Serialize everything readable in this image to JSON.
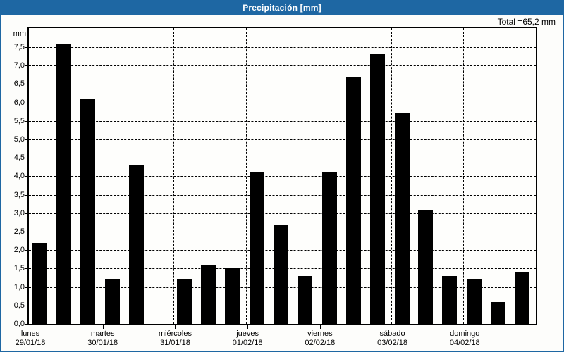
{
  "header": {
    "title": "Precipitación [mm]",
    "total_label": "Total =65,2 mm"
  },
  "chart_data": {
    "type": "bar",
    "title": "Precipitación [mm]",
    "xlabel": "",
    "ylabel": "mm",
    "ylim": [
      0,
      8
    ],
    "ytick_step": 0.5,
    "ytick_labels": [
      "0,0",
      "0,5",
      "1,0",
      "1,5",
      "2,0",
      "2,5",
      "3,0",
      "3,5",
      "4,0",
      "4,5",
      "5,0",
      "5,5",
      "6,0",
      "6,5",
      "7,0",
      "7,5"
    ],
    "grid": "dashed",
    "legend": "none",
    "bar_color": "#000000",
    "bars_per_day": 3,
    "days": [
      {
        "name": "lunes",
        "date": "29/01/18",
        "values": [
          2.2,
          7.6,
          6.1
        ]
      },
      {
        "name": "martes",
        "date": "30/01/18",
        "values": [
          1.2,
          4.3,
          0
        ]
      },
      {
        "name": "miércoles",
        "date": "31/01/18",
        "values": [
          1.2,
          1.6,
          1.5
        ]
      },
      {
        "name": "jueves",
        "date": "01/02/18",
        "values": [
          4.1,
          2.7,
          1.3
        ]
      },
      {
        "name": "viernes",
        "date": "02/02/18",
        "values": [
          4.1,
          6.7,
          7.3
        ]
      },
      {
        "name": "sábado",
        "date": "03/02/18",
        "values": [
          5.7,
          3.1,
          1.3
        ]
      },
      {
        "name": "domingo",
        "date": "04/02/18",
        "values": [
          1.2,
          0.6,
          1.4
        ]
      }
    ],
    "total_mm": 65.2,
    "accent_color": "#1e67a3"
  }
}
